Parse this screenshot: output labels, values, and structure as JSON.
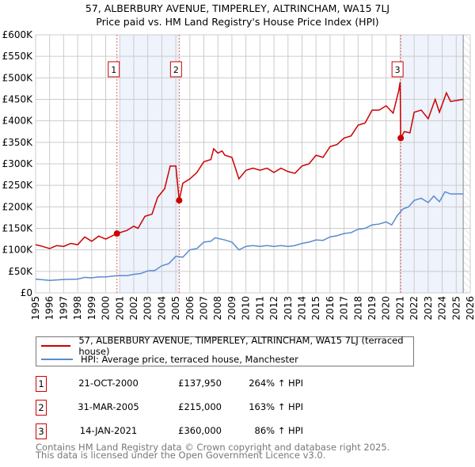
{
  "chart_data": {
    "type": "line",
    "title": "57, ALBERBURY AVENUE, TIMPERLEY, ALTRINCHAM, WA15 7LJ",
    "subtitle": "Price paid vs. HM Land Registry's House Price Index (HPI)",
    "xlim": [
      1995,
      2026
    ],
    "ylim": [
      0,
      600000
    ],
    "y_ticks": [
      {
        "v": 0,
        "l": "£0"
      },
      {
        "v": 50000,
        "l": "£50K"
      },
      {
        "v": 100000,
        "l": "£100K"
      },
      {
        "v": 150000,
        "l": "£150K"
      },
      {
        "v": 200000,
        "l": "£200K"
      },
      {
        "v": 250000,
        "l": "£250K"
      },
      {
        "v": 300000,
        "l": "£300K"
      },
      {
        "v": 350000,
        "l": "£350K"
      },
      {
        "v": 400000,
        "l": "£400K"
      },
      {
        "v": 450000,
        "l": "£450K"
      },
      {
        "v": 500000,
        "l": "£500K"
      },
      {
        "v": 550000,
        "l": "£550K"
      },
      {
        "v": 600000,
        "l": "£600K"
      }
    ],
    "x_ticks": [
      "1995",
      "1996",
      "1997",
      "1998",
      "1999",
      "2000",
      "2001",
      "2002",
      "2003",
      "2004",
      "2005",
      "2006",
      "2007",
      "2008",
      "2009",
      "2010",
      "2011",
      "2012",
      "2013",
      "2014",
      "2015",
      "2016",
      "2017",
      "2018",
      "2019",
      "2020",
      "2021",
      "2022",
      "2023",
      "2024",
      "2025",
      "2026"
    ],
    "grid": true,
    "series": [
      {
        "name": "57, ALBERBURY AVENUE, TIMPERLEY, ALTRINCHAM, WA15 7LJ (terraced house)",
        "color": "#cc0000",
        "x": [
          1995,
          1995.5,
          1996,
          1996.5,
          1997,
          1997.5,
          1998,
          1998.5,
          1999,
          1999.5,
          2000,
          2000.8,
          2001.5,
          2002,
          2002.3,
          2002.8,
          2003.3,
          2003.7,
          2004.2,
          2004.6,
          2005,
          2005.24,
          2005.5,
          2006,
          2006.5,
          2007,
          2007.5,
          2007.7,
          2008,
          2008.3,
          2008.5,
          2009,
          2009.5,
          2010,
          2010.5,
          2011,
          2011.5,
          2012,
          2012.5,
          2013,
          2013.5,
          2014,
          2014.5,
          2015,
          2015.5,
          2016,
          2016.5,
          2017,
          2017.5,
          2018,
          2018.5,
          2019,
          2019.5,
          2020,
          2020.5,
          2020.9,
          2021,
          2021.04,
          2021.3,
          2021.7,
          2022,
          2022.5,
          2023,
          2023.5,
          2023.8,
          2024.3,
          2024.6,
          2025.5
        ],
        "y": [
          112000,
          108000,
          103000,
          110000,
          108000,
          115000,
          112000,
          130000,
          120000,
          132000,
          125000,
          137950,
          145000,
          155000,
          150000,
          178000,
          183000,
          222000,
          242000,
          295000,
          295000,
          215000,
          255000,
          265000,
          280000,
          305000,
          310000,
          335000,
          325000,
          330000,
          320000,
          315000,
          265000,
          285000,
          290000,
          285000,
          290000,
          280000,
          290000,
          282000,
          278000,
          295000,
          300000,
          320000,
          315000,
          340000,
          345000,
          360000,
          365000,
          390000,
          395000,
          425000,
          425000,
          435000,
          418000,
          470000,
          490000,
          360000,
          375000,
          372000,
          420000,
          425000,
          405000,
          450000,
          420000,
          465000,
          445000,
          450000
        ]
      },
      {
        "name": "HPI: Average price, terraced house, Manchester",
        "color": "#5b8bd0",
        "x": [
          1995,
          1996,
          1997,
          1998,
          1998.5,
          1999,
          1999.5,
          2000,
          2000.8,
          2001.5,
          2002,
          2002.5,
          2003,
          2003.5,
          2004,
          2004.5,
          2005,
          2005.5,
          2006,
          2006.5,
          2007,
          2007.5,
          2007.8,
          2008.5,
          2009,
          2009.5,
          2010,
          2010.5,
          2011,
          2011.5,
          2012,
          2012.5,
          2013,
          2013.5,
          2014,
          2014.5,
          2015,
          2015.5,
          2016,
          2016.5,
          2017,
          2017.5,
          2018,
          2018.5,
          2019,
          2019.5,
          2020,
          2020.4,
          2020.8,
          2021.2,
          2021.6,
          2022,
          2022.5,
          2023,
          2023.4,
          2023.8,
          2024.2,
          2024.6,
          2025.5
        ],
        "y": [
          32000,
          29000,
          31000,
          32000,
          36000,
          35000,
          37000,
          37000,
          40000,
          40000,
          43000,
          45000,
          51000,
          52000,
          63000,
          68000,
          85000,
          83000,
          100000,
          103000,
          118000,
          120000,
          128000,
          123000,
          118000,
          100000,
          108000,
          110000,
          108000,
          110000,
          108000,
          110000,
          108000,
          110000,
          115000,
          118000,
          123000,
          122000,
          130000,
          133000,
          138000,
          140000,
          148000,
          150000,
          158000,
          160000,
          165000,
          158000,
          180000,
          195000,
          200000,
          215000,
          220000,
          210000,
          225000,
          212000,
          235000,
          230000,
          230000
        ]
      }
    ],
    "sales": [
      {
        "n": "1",
        "x": 2000.8,
        "y": 137950,
        "date": "21-OCT-2000",
        "price": "£137,950",
        "hpi": "264% ↑ HPI"
      },
      {
        "n": "2",
        "x": 2005.24,
        "y": 215000,
        "date": "31-MAR-2005",
        "price": "£215,000",
        "hpi": "163% ↑ HPI"
      },
      {
        "n": "3",
        "x": 2021.04,
        "y": 360000,
        "date": "14-JAN-2021",
        "price": "£360,000",
        "hpi": "86% ↑ HPI"
      }
    ],
    "shaded": [
      [
        2001,
        2005.24
      ],
      [
        2021.04,
        2025.5
      ]
    ],
    "hatch_from": 2025.5
  },
  "footer": {
    "line1": "Contains HM Land Registry data © Crown copyright and database right 2025.",
    "line2": "This data is licensed under the Open Government Licence v3.0."
  }
}
